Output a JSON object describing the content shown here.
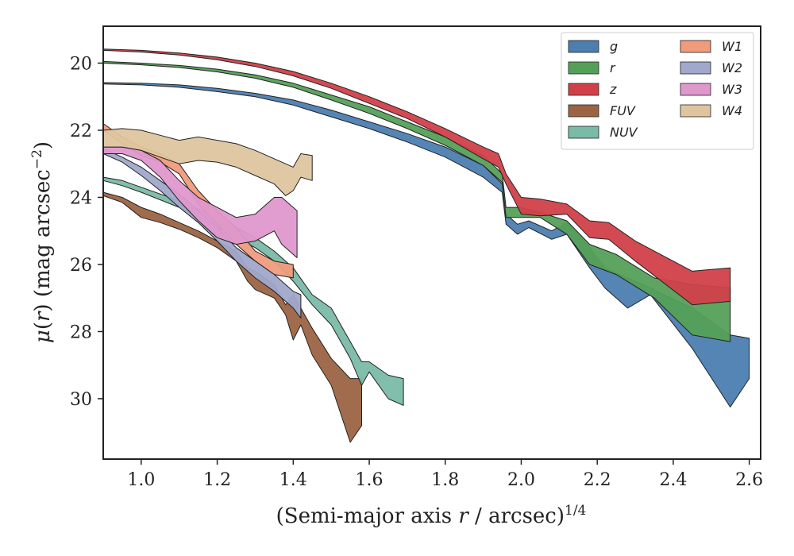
{
  "chart_data": {
    "type": "area",
    "xlabel": "(Semi-major axis r / arcsec)^{1/4}",
    "ylabel": "μ(r) (mag arcsec⁻²)",
    "xlim": [
      0.9,
      2.63
    ],
    "ylim": [
      31.8,
      18.9
    ],
    "y_inverted": true,
    "xticks": [
      "1.0",
      "1.2",
      "1.4",
      "1.6",
      "1.8",
      "2.0",
      "2.2",
      "2.4",
      "2.6"
    ],
    "yticks": [
      "20",
      "22",
      "24",
      "26",
      "28",
      "30"
    ],
    "legend_position": "top-right",
    "legend_columns": 2,
    "series": [
      {
        "name": "g",
        "color": "#4c7eb0",
        "x": [
          0.9,
          1.0,
          1.1,
          1.2,
          1.3,
          1.4,
          1.5,
          1.6,
          1.7,
          1.8,
          1.9,
          1.95,
          1.96,
          1.99,
          2.02,
          2.08,
          2.12,
          2.18,
          2.22,
          2.28,
          2.34,
          2.45,
          2.55,
          2.6
        ],
        "y_upper": [
          20.58,
          20.6,
          20.65,
          20.75,
          20.9,
          21.1,
          21.4,
          21.75,
          22.1,
          22.5,
          23.05,
          23.6,
          24.5,
          24.8,
          24.7,
          25.0,
          24.75,
          25.5,
          26.1,
          26.4,
          26.7,
          27.3,
          28.1,
          28.2
        ],
        "y_lower": [
          20.62,
          20.65,
          20.72,
          20.85,
          21.0,
          21.25,
          21.6,
          21.95,
          22.35,
          22.8,
          23.4,
          23.85,
          24.8,
          25.1,
          24.9,
          25.25,
          25.1,
          26.1,
          26.7,
          27.3,
          26.9,
          28.5,
          30.25,
          29.4
        ]
      },
      {
        "name": "r",
        "color": "#55a058",
        "x": [
          0.9,
          1.0,
          1.1,
          1.2,
          1.3,
          1.4,
          1.5,
          1.6,
          1.7,
          1.8,
          1.9,
          1.95,
          1.96,
          2.0,
          2.05,
          2.12,
          2.18,
          2.25,
          2.35,
          2.45,
          2.55
        ],
        "y_upper": [
          19.95,
          20.0,
          20.07,
          20.18,
          20.35,
          20.6,
          20.95,
          21.3,
          21.75,
          22.2,
          22.75,
          23.3,
          24.3,
          24.3,
          24.45,
          24.7,
          25.4,
          25.7,
          26.4,
          26.6,
          26.7
        ],
        "y_lower": [
          20.0,
          20.05,
          20.13,
          20.26,
          20.45,
          20.72,
          21.1,
          21.5,
          21.95,
          22.45,
          23.05,
          23.55,
          24.6,
          24.6,
          24.6,
          25.1,
          26.0,
          26.3,
          27.0,
          28.1,
          28.3
        ]
      },
      {
        "name": "z",
        "color": "#d1404a",
        "x": [
          0.9,
          1.0,
          1.1,
          1.2,
          1.3,
          1.4,
          1.5,
          1.6,
          1.7,
          1.8,
          1.9,
          1.94,
          1.96,
          2.0,
          2.05,
          2.12,
          2.18,
          2.23,
          2.3,
          2.45,
          2.55
        ],
        "y_upper": [
          19.58,
          19.62,
          19.7,
          19.82,
          20.0,
          20.25,
          20.6,
          21.0,
          21.45,
          21.95,
          22.5,
          22.7,
          23.3,
          24.0,
          24.05,
          24.2,
          24.7,
          24.75,
          25.3,
          26.2,
          26.1
        ],
        "y_lower": [
          19.62,
          19.67,
          19.76,
          19.9,
          20.1,
          20.38,
          20.75,
          21.2,
          21.65,
          22.2,
          22.85,
          23.1,
          23.6,
          24.5,
          24.55,
          24.5,
          25.2,
          25.25,
          25.9,
          27.2,
          27.1
        ]
      },
      {
        "name": "FUV",
        "color": "#9c6443",
        "x": [
          0.9,
          0.95,
          1.0,
          1.05,
          1.1,
          1.15,
          1.2,
          1.25,
          1.28,
          1.3,
          1.35,
          1.38,
          1.4,
          1.42,
          1.45,
          1.5,
          1.55,
          1.58
        ],
        "y_upper": [
          23.85,
          24.0,
          24.3,
          24.5,
          24.75,
          25.0,
          25.3,
          25.6,
          26.1,
          26.2,
          26.6,
          27.2,
          26.9,
          27.3,
          27.9,
          28.8,
          29.4,
          29.4
        ],
        "y_lower": [
          23.95,
          24.15,
          24.6,
          24.75,
          24.95,
          25.2,
          25.5,
          25.9,
          26.5,
          26.75,
          27.0,
          27.5,
          28.25,
          27.8,
          28.7,
          29.6,
          31.3,
          30.8
        ]
      },
      {
        "name": "NUV",
        "color": "#7abba7",
        "x": [
          0.9,
          0.95,
          1.0,
          1.1,
          1.2,
          1.3,
          1.35,
          1.4,
          1.45,
          1.5,
          1.55,
          1.58,
          1.6,
          1.65,
          1.69
        ],
        "y_upper": [
          23.4,
          23.5,
          23.7,
          24.1,
          24.6,
          25.2,
          25.6,
          26.1,
          26.9,
          27.3,
          28.3,
          28.9,
          28.9,
          29.3,
          29.4
        ],
        "y_lower": [
          23.5,
          23.65,
          23.85,
          24.3,
          24.9,
          25.5,
          25.9,
          26.5,
          27.2,
          27.8,
          28.8,
          29.6,
          29.2,
          30.0,
          30.2
        ]
      },
      {
        "name": "W1",
        "color": "#ef9b7c",
        "x": [
          0.9,
          0.95,
          1.0,
          1.05,
          1.1,
          1.15,
          1.2,
          1.25,
          1.3,
          1.35,
          1.4
        ],
        "y_upper": [
          21.8,
          22.2,
          22.5,
          22.7,
          23.0,
          23.8,
          24.4,
          24.9,
          25.6,
          25.9,
          26.0
        ],
        "y_lower": [
          22.0,
          22.4,
          22.75,
          22.95,
          23.3,
          24.2,
          24.8,
          25.4,
          25.9,
          26.3,
          26.4
        ]
      },
      {
        "name": "W2",
        "color": "#a0a8cb",
        "x": [
          0.9,
          0.95,
          1.0,
          1.05,
          1.1,
          1.15,
          1.2,
          1.25,
          1.3,
          1.35,
          1.4,
          1.42
        ],
        "y_upper": [
          22.55,
          22.8,
          23.1,
          23.5,
          23.9,
          24.4,
          24.9,
          25.5,
          25.9,
          26.3,
          26.8,
          26.9
        ],
        "y_lower": [
          22.7,
          22.95,
          23.35,
          23.8,
          24.3,
          24.75,
          25.3,
          25.9,
          26.4,
          26.8,
          27.3,
          27.6
        ]
      },
      {
        "name": "W3",
        "color": "#df98cc",
        "x": [
          0.9,
          0.95,
          1.0,
          1.05,
          1.1,
          1.15,
          1.2,
          1.25,
          1.3,
          1.35,
          1.37,
          1.41
        ],
        "y_upper": [
          22.5,
          22.5,
          22.6,
          22.9,
          23.5,
          24.0,
          24.3,
          24.6,
          24.5,
          24.0,
          24.0,
          24.4
        ],
        "y_lower": [
          22.7,
          22.7,
          22.9,
          23.4,
          24.1,
          24.7,
          25.2,
          25.4,
          25.3,
          25.0,
          25.4,
          25.8
        ]
      },
      {
        "name": "W4",
        "color": "#dfc59f",
        "x": [
          0.9,
          0.95,
          1.0,
          1.05,
          1.1,
          1.15,
          1.2,
          1.25,
          1.3,
          1.35,
          1.38,
          1.4,
          1.42,
          1.45
        ],
        "y_upper": [
          22.0,
          21.95,
          22.0,
          22.15,
          22.3,
          22.2,
          22.3,
          22.4,
          22.6,
          22.85,
          23.0,
          23.1,
          22.7,
          22.75
        ],
        "y_lower": [
          22.5,
          22.5,
          22.6,
          22.8,
          23.0,
          22.9,
          22.95,
          23.1,
          23.35,
          23.6,
          23.95,
          23.8,
          23.4,
          23.5
        ]
      }
    ]
  }
}
